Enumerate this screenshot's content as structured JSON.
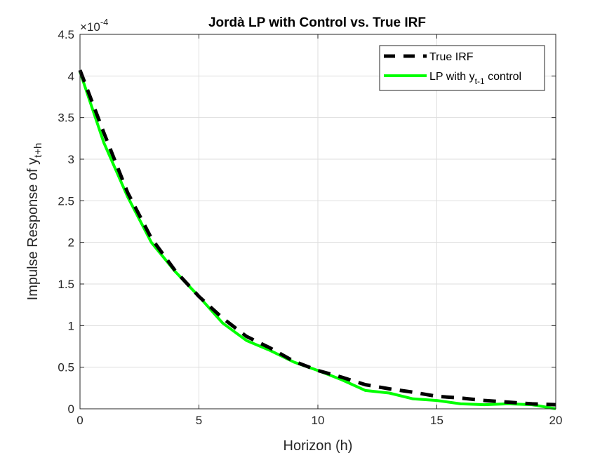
{
  "chart_data": {
    "type": "line",
    "title": "Jordà LP with Control vs. True IRF",
    "xlabel": "Horizon (h)",
    "ylabel_main": "Impulse Response of y",
    "ylabel_sub": "t+h",
    "y_exponent_base": "×10",
    "y_exponent": "-4",
    "xlim": [
      0,
      20
    ],
    "ylim": [
      0,
      4.5
    ],
    "x_ticks": [
      0,
      5,
      10,
      15,
      20
    ],
    "y_ticks": [
      0,
      0.5,
      1,
      1.5,
      2,
      2.5,
      3,
      3.5,
      4,
      4.5
    ],
    "y_tick_labels": [
      "0",
      "0.5",
      "1",
      "1.5",
      "2",
      "2.5",
      "3",
      "3.5",
      "4",
      "4.5"
    ],
    "grid": true,
    "legend_position": "top-right",
    "x": [
      0,
      1,
      2,
      3,
      4,
      5,
      6,
      7,
      8,
      9,
      10,
      11,
      12,
      13,
      14,
      15,
      16,
      17,
      18,
      19,
      20
    ],
    "series": [
      {
        "label_main": "True IRF",
        "label_sub": "",
        "label_tail": "",
        "color": "#000000",
        "style": "dashed",
        "values": [
          4.07,
          3.32,
          2.6,
          2.05,
          1.66,
          1.35,
          1.09,
          0.87,
          0.73,
          0.57,
          0.46,
          0.38,
          0.29,
          0.24,
          0.2,
          0.15,
          0.13,
          0.1,
          0.08,
          0.06,
          0.05
        ]
      },
      {
        "label_main": "LP with y",
        "label_sub": "t-1",
        "label_tail": " control",
        "color": "#00ff00",
        "style": "solid",
        "values": [
          4.05,
          3.2,
          2.55,
          2.0,
          1.65,
          1.35,
          1.03,
          0.82,
          0.7,
          0.56,
          0.46,
          0.35,
          0.22,
          0.19,
          0.12,
          0.1,
          0.06,
          0.05,
          0.06,
          0.05,
          0.0
        ]
      }
    ]
  }
}
